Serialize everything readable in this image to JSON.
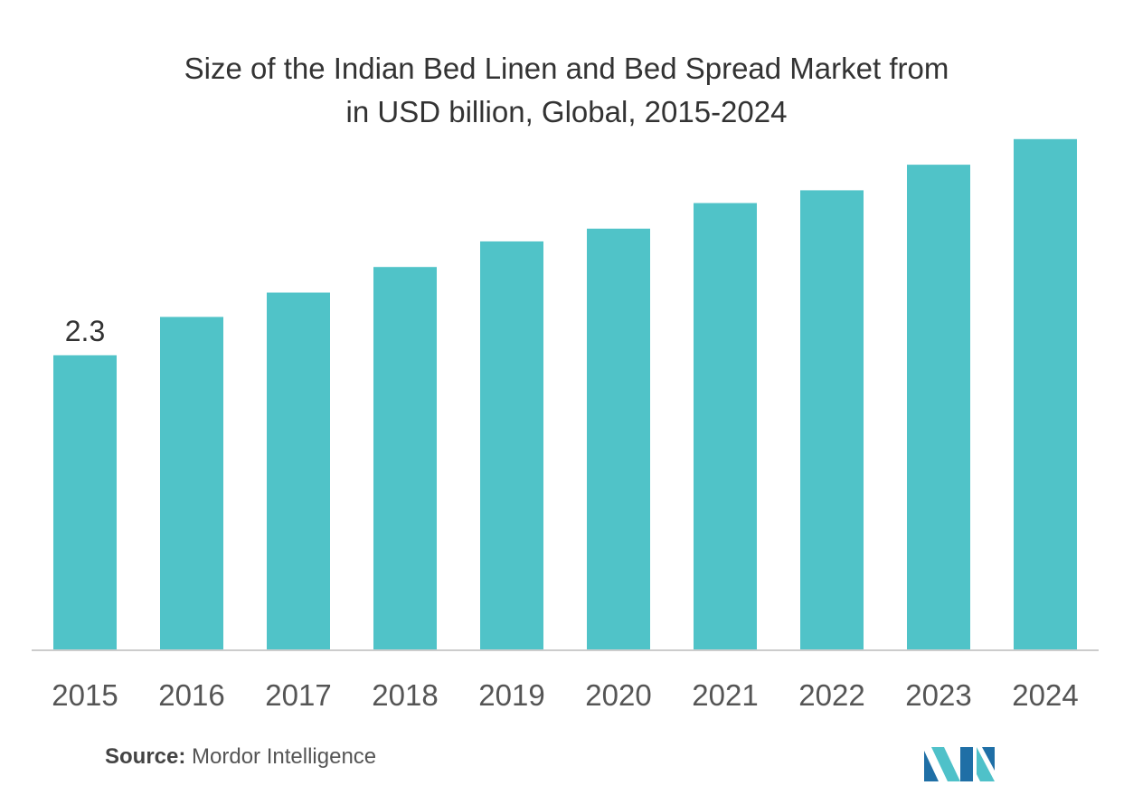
{
  "chart_data": {
    "type": "bar",
    "title_lines": [
      "Size of the Indian Bed Linen and Bed Spread Market from",
      "in USD billion, Global, 2015-2024"
    ],
    "xlabel": "",
    "ylabel": "",
    "categories": [
      "2015",
      "2016",
      "2017",
      "2018",
      "2019",
      "2020",
      "2021",
      "2022",
      "2023",
      "2024"
    ],
    "values": [
      2.3,
      2.6,
      2.79,
      2.99,
      3.19,
      3.29,
      3.49,
      3.59,
      3.79,
      3.99
    ],
    "data_labels": [
      "2.3",
      "",
      "",
      "",
      "",
      "",
      "",
      "",
      "",
      ""
    ],
    "ylim": [
      0,
      4.3
    ],
    "grid": false,
    "legend": "none",
    "bar_color": "#50c3c8",
    "axis_color": "#cccccc"
  },
  "footer": {
    "source_label": "Source:",
    "source_text": "Mordor Intelligence"
  },
  "logo": {
    "icon": "mordor-intelligence-logo",
    "colors": [
      "#1f6fa6",
      "#4fc1c9"
    ]
  }
}
